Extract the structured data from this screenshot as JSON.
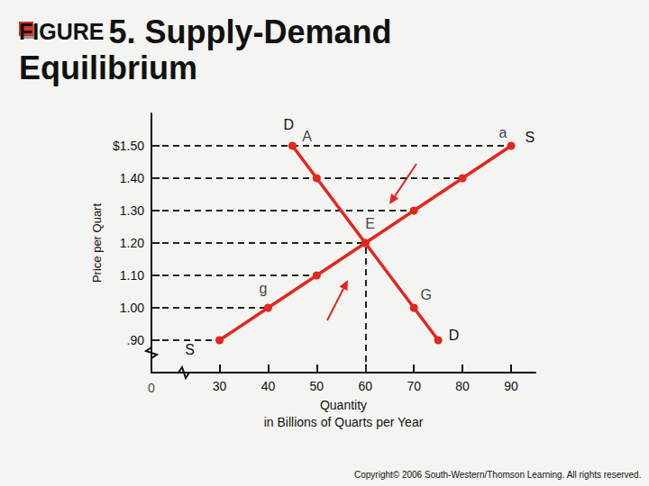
{
  "chart_data": {
    "type": "line",
    "title": "FIGURE 5. Supply-Demand Equilibrium",
    "x_label": "Quantity\nin Billions of Quarts per Year",
    "y_label": "Price per Quart",
    "xlim": [
      16,
      95
    ],
    "xticks": [
      30,
      40,
      50,
      60,
      70,
      80,
      90
    ],
    "ylim": [
      0.8,
      1.6
    ],
    "yticks": [
      {
        "value": 0.9,
        "label": ".90"
      },
      {
        "value": 1.0,
        "label": "1.00"
      },
      {
        "value": 1.1,
        "label": "1.10"
      },
      {
        "value": 1.2,
        "label": "1.20"
      },
      {
        "value": 1.3,
        "label": "1.30"
      },
      {
        "value": 1.4,
        "label": "1.40"
      },
      {
        "value": 1.5,
        "label": "$1.50"
      }
    ],
    "grid": false,
    "marker": "circle",
    "series": [
      {
        "name": "S",
        "color": "#e3261e",
        "x": [
          30,
          40,
          50,
          60,
          70,
          80,
          90
        ],
        "values": [
          0.9,
          1.0,
          1.1,
          1.2,
          1.3,
          1.4,
          1.5
        ]
      },
      {
        "name": "D",
        "color": "#e3261e",
        "x": [
          45,
          50,
          60,
          70,
          75
        ],
        "values": [
          1.5,
          1.4,
          1.2,
          1.0,
          0.9
        ]
      }
    ],
    "annotations": [
      {
        "text": "A",
        "x": 48,
        "y": 1.53
      },
      {
        "text": "a",
        "x": 88.3,
        "y": 1.54
      },
      {
        "text": "E",
        "x": 61,
        "y": 1.26
      },
      {
        "text": "g",
        "x": 39,
        "y": 1.06
      },
      {
        "text": "G",
        "x": 72.5,
        "y": 1.04
      },
      {
        "text": "0",
        "x": 16,
        "y": 0.8
      }
    ],
    "footer": "Copyright© 2006 South-Western/Thomson Learning. All rights reserved."
  }
}
